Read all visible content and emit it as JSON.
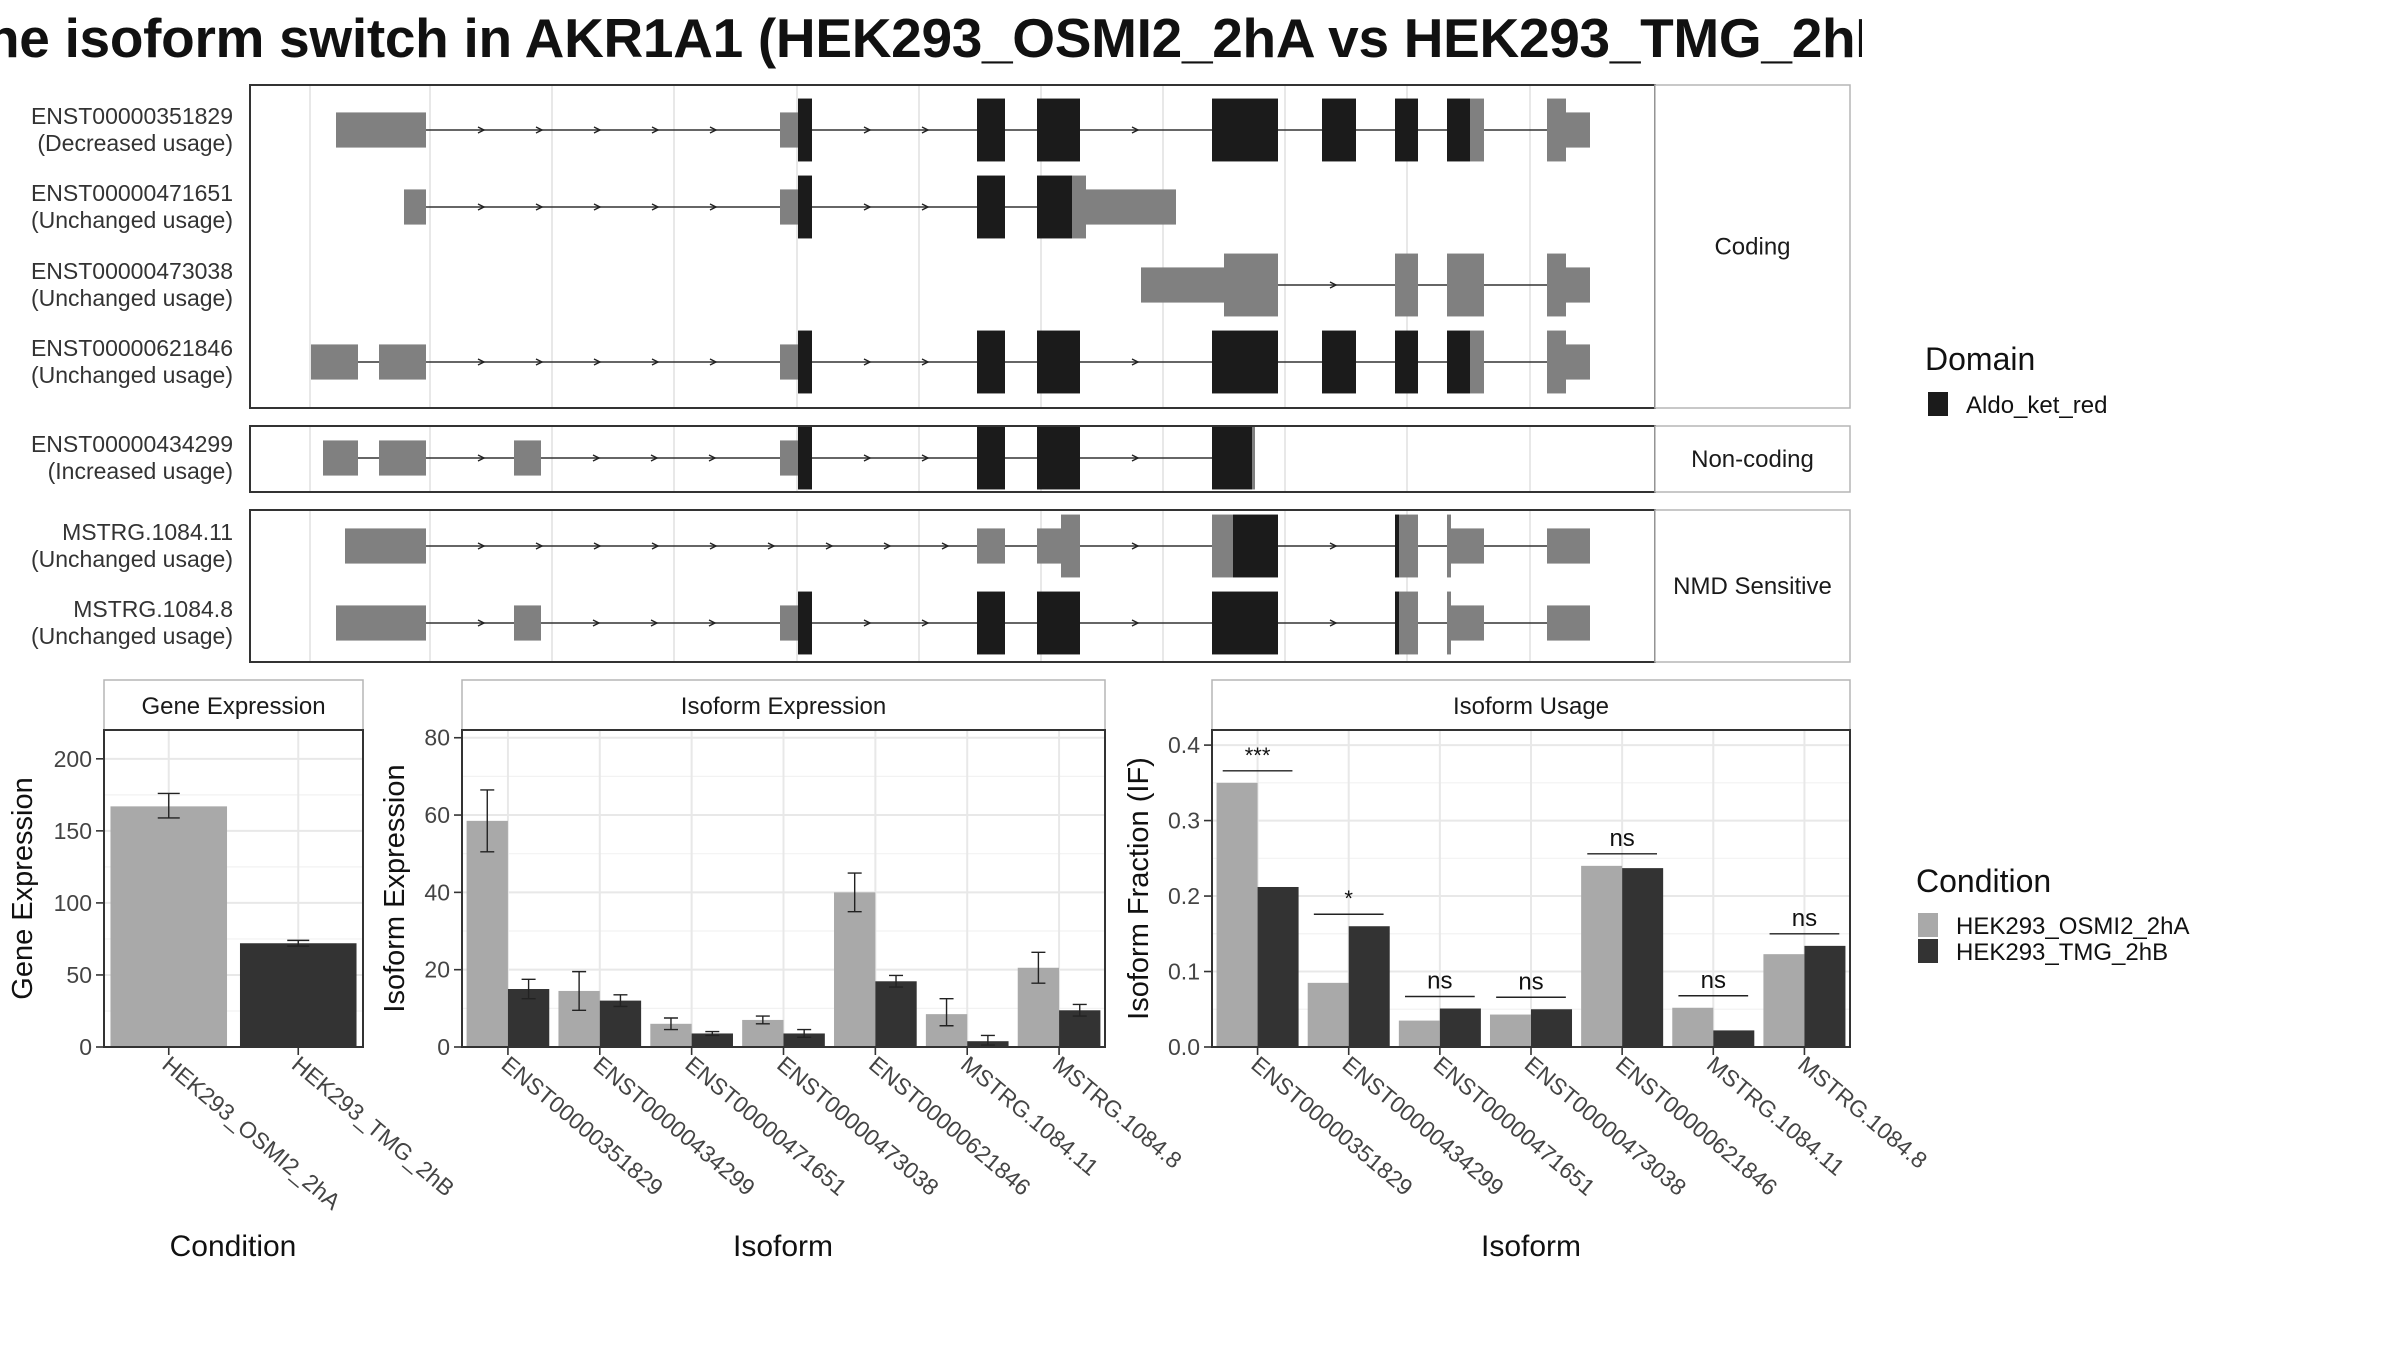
{
  "title": "he isoform switch in AKR1A1 (HEK293_OSMI2_2hA vs HEK293_TMG_2hB",
  "colors": {
    "domain": "#1b1b1b",
    "exon": "#808080",
    "cond_a": "#a9a9a9",
    "cond_b": "#333333",
    "panel_border": "#333333",
    "strip_border": "#b5b5b5",
    "grid": "#e8e8e8"
  },
  "structure": {
    "groups": [
      {
        "label": "Coding",
        "rows": [
          {
            "id": "ENST00000351829",
            "usage": "(Decreased usage)"
          },
          {
            "id": "ENST00000471651",
            "usage": "(Unchanged usage)"
          },
          {
            "id": "ENST00000473038",
            "usage": "(Unchanged usage)"
          },
          {
            "id": "ENST00000621846",
            "usage": "(Unchanged usage)"
          }
        ]
      },
      {
        "label": "Non-coding",
        "rows": [
          {
            "id": "ENST00000434299",
            "usage": "(Increased usage)"
          }
        ]
      },
      {
        "label": "NMD Sensitive",
        "rows": [
          {
            "id": "MSTRG.1084.11",
            "usage": "(Unchanged usage)"
          },
          {
            "id": "MSTRG.1084.8",
            "usage": "(Unchanged usage)"
          }
        ]
      }
    ]
  },
  "legends": {
    "domain": {
      "title": "Domain",
      "items": [
        {
          "label": "Aldo_ket_red"
        }
      ]
    },
    "condition": {
      "title": "Condition",
      "items": [
        {
          "label": "HEK293_OSMI2_2hA"
        },
        {
          "label": "HEK293_TMG_2hB"
        }
      ]
    }
  },
  "chart_data": [
    {
      "type": "bar",
      "title": "Gene Expression",
      "xlabel": "Condition",
      "ylabel": "Gene Expression",
      "ylim": [
        0,
        220
      ],
      "yticks": [
        0,
        50,
        100,
        150,
        200
      ],
      "categories": [
        "HEK293_OSMI2_2hA",
        "HEK293_TMG_2hB"
      ],
      "values": [
        167,
        72
      ],
      "errors": [
        [
          159,
          176
        ],
        [
          70,
          74
        ]
      ]
    },
    {
      "type": "bar",
      "title": "Isoform Expression",
      "xlabel": "Isoform",
      "ylabel": "Isoform Expression",
      "ylim": [
        0,
        82
      ],
      "yticks": [
        0,
        20,
        40,
        60,
        80
      ],
      "categories": [
        "ENST00000351829",
        "ENST00000434299",
        "ENST00000471651",
        "ENST00000473038",
        "ENST00000621846",
        "MSTRG.1084.11",
        "MSTRG.1084.8"
      ],
      "series": [
        {
          "name": "HEK293_OSMI2_2hA",
          "values": [
            58.5,
            14.5,
            6.0,
            7.0,
            40.0,
            8.5,
            20.5
          ],
          "errors": [
            [
              50.5,
              66.5
            ],
            [
              9.5,
              19.5
            ],
            [
              4.5,
              7.5
            ],
            [
              6.0,
              8.0
            ],
            [
              35.0,
              45.0
            ],
            [
              5.5,
              12.5
            ],
            [
              16.5,
              24.5
            ]
          ]
        },
        {
          "name": "HEK293_TMG_2hB",
          "values": [
            15.0,
            12.0,
            3.5,
            3.5,
            17.0,
            1.5,
            9.5
          ],
          "errors": [
            [
              12.5,
              17.5
            ],
            [
              10.5,
              13.5
            ],
            [
              3.0,
              4.0
            ],
            [
              2.5,
              4.5
            ],
            [
              15.5,
              18.5
            ],
            [
              0.5,
              3.0
            ],
            [
              8.0,
              11.0
            ]
          ]
        }
      ]
    },
    {
      "type": "bar",
      "title": "Isoform Usage",
      "xlabel": "Isoform",
      "ylabel": "Isoform Fraction (IF)",
      "ylim": [
        0,
        0.42
      ],
      "yticks": [
        0.0,
        0.1,
        0.2,
        0.3,
        0.4
      ],
      "categories": [
        "ENST00000351829",
        "ENST00000434299",
        "ENST00000471651",
        "ENST00000473038",
        "ENST00000621846",
        "MSTRG.1084.11",
        "MSTRG.1084.8"
      ],
      "series": [
        {
          "name": "HEK293_OSMI2_2hA",
          "values": [
            0.35,
            0.085,
            0.035,
            0.043,
            0.24,
            0.052,
            0.123
          ]
        },
        {
          "name": "HEK293_TMG_2hB",
          "values": [
            0.212,
            0.16,
            0.051,
            0.05,
            0.237,
            0.022,
            0.134
          ]
        }
      ],
      "significance": [
        "***",
        "*",
        "ns",
        "ns",
        "ns",
        "ns",
        "ns"
      ]
    }
  ]
}
